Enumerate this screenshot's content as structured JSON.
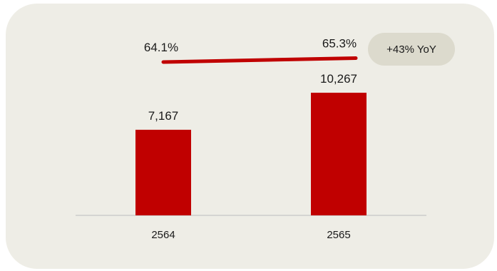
{
  "colors": {
    "card_background": "#eeede6",
    "bar": "#c00000",
    "line": "#c00000",
    "badge_background": "#dcdacd",
    "axis": "#cccccc"
  },
  "badge": {
    "text": "+43% YoY"
  },
  "chart_data": {
    "type": "bar",
    "categories": [
      "2564",
      "2565"
    ],
    "series": [
      {
        "type": "bar",
        "values": [
          7167,
          10267
        ],
        "value_labels": [
          "7,167",
          "10,267"
        ]
      },
      {
        "type": "line",
        "values": [
          64.1,
          65.3
        ],
        "value_labels": [
          "64.1%",
          "65.3%"
        ]
      }
    ],
    "title": "",
    "xlabel": "",
    "ylabel": "",
    "ylim": [
      0,
      11500
    ],
    "grid": false,
    "legend": "none"
  }
}
